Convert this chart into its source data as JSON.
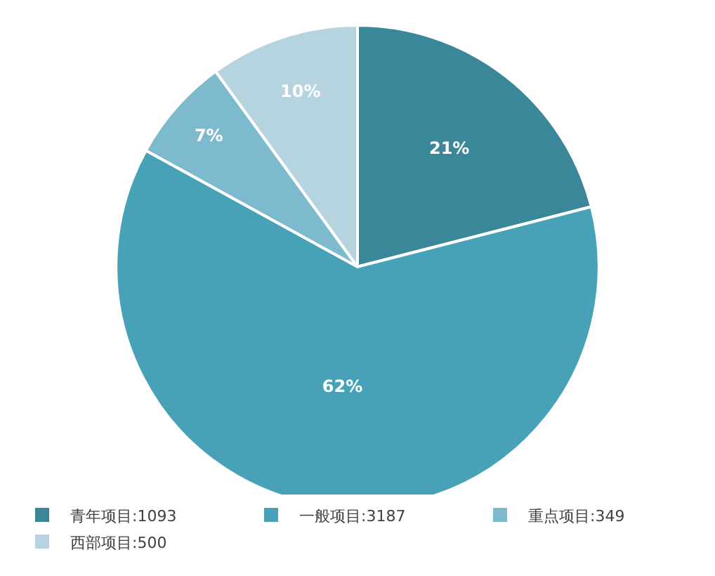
{
  "chart_data": {
    "type": "pie",
    "categories": [
      "青年项目:1093",
      "一般项目:3187",
      "重点项目:349",
      "西部项目:500"
    ],
    "values": [
      21,
      62,
      7,
      10
    ],
    "colors": [
      "#398799",
      "#47a2b8",
      "#7dbace",
      "#b5d4df"
    ],
    "value_labels": [
      "21%",
      "62%",
      "7%",
      "10%"
    ],
    "legend": "bottom"
  }
}
